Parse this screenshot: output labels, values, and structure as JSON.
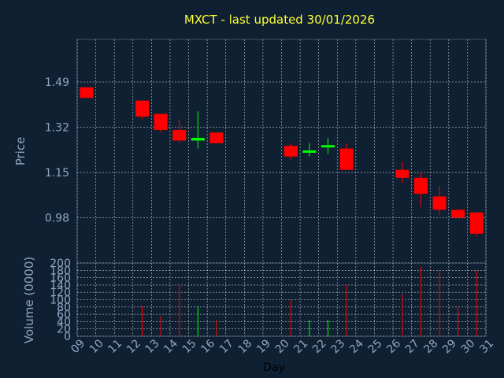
{
  "chart_data": {
    "type": "candlestick",
    "title": "MXCT - last updated 30/01/2026",
    "xlabel": "Day",
    "ylabel": "Price",
    "volume_label": "Volume (0000)",
    "x_ticks": [
      "09",
      "10",
      "11",
      "12",
      "13",
      "14",
      "15",
      "16",
      "17",
      "18",
      "19",
      "20",
      "21",
      "22",
      "23",
      "24",
      "25",
      "26",
      "27",
      "28",
      "29",
      "30",
      "31"
    ],
    "y_ticks": [
      "0.98",
      "1.15",
      "1.32",
      "1.49"
    ],
    "ylim": [
      0.81,
      1.65
    ],
    "volume_ticks": [
      "0",
      "20",
      "40",
      "60",
      "80",
      "100",
      "120",
      "140",
      "160",
      "180",
      "200"
    ],
    "volume_ylim": [
      0,
      200
    ],
    "grid": true,
    "colors": {
      "background": "#0f2033",
      "up": "#00ff00",
      "down": "#ff0000",
      "grid": "#ffffff",
      "title": "#ffff33",
      "axis_text": "#8fa7c2"
    },
    "candles": [
      {
        "day": 9,
        "open": 1.47,
        "high": 1.47,
        "low": 1.43,
        "close": 1.43,
        "volume": 0
      },
      {
        "day": 12,
        "open": 1.42,
        "high": 1.42,
        "low": 1.35,
        "close": 1.36,
        "volume": 82
      },
      {
        "day": 13,
        "open": 1.37,
        "high": 1.37,
        "low": 1.3,
        "close": 1.31,
        "volume": 55
      },
      {
        "day": 14,
        "open": 1.31,
        "high": 1.35,
        "low": 1.26,
        "close": 1.27,
        "volume": 140
      },
      {
        "day": 15,
        "open": 1.27,
        "high": 1.38,
        "low": 1.24,
        "close": 1.28,
        "volume": 82
      },
      {
        "day": 16,
        "open": 1.3,
        "high": 1.3,
        "low": 1.26,
        "close": 1.26,
        "volume": 45
      },
      {
        "day": 20,
        "open": 1.25,
        "high": 1.26,
        "low": 1.2,
        "close": 1.21,
        "volume": 100
      },
      {
        "day": 21,
        "open": 1.23,
        "high": 1.26,
        "low": 1.21,
        "close": 1.23,
        "volume": 45
      },
      {
        "day": 22,
        "open": 1.25,
        "high": 1.28,
        "low": 1.22,
        "close": 1.25,
        "volume": 45
      },
      {
        "day": 23,
        "open": 1.24,
        "high": 1.26,
        "low": 1.16,
        "close": 1.16,
        "volume": 140
      },
      {
        "day": 26,
        "open": 1.16,
        "high": 1.19,
        "low": 1.11,
        "close": 1.13,
        "volume": 115
      },
      {
        "day": 27,
        "open": 1.13,
        "high": 1.15,
        "low": 1.02,
        "close": 1.07,
        "volume": 190
      },
      {
        "day": 28,
        "open": 1.06,
        "high": 1.1,
        "low": 0.99,
        "close": 1.01,
        "volume": 180
      },
      {
        "day": 29,
        "open": 1.01,
        "high": 1.01,
        "low": 0.98,
        "close": 0.98,
        "volume": 80
      },
      {
        "day": 30,
        "open": 1.0,
        "high": 1.0,
        "low": 0.91,
        "close": 0.92,
        "volume": 180
      }
    ]
  }
}
